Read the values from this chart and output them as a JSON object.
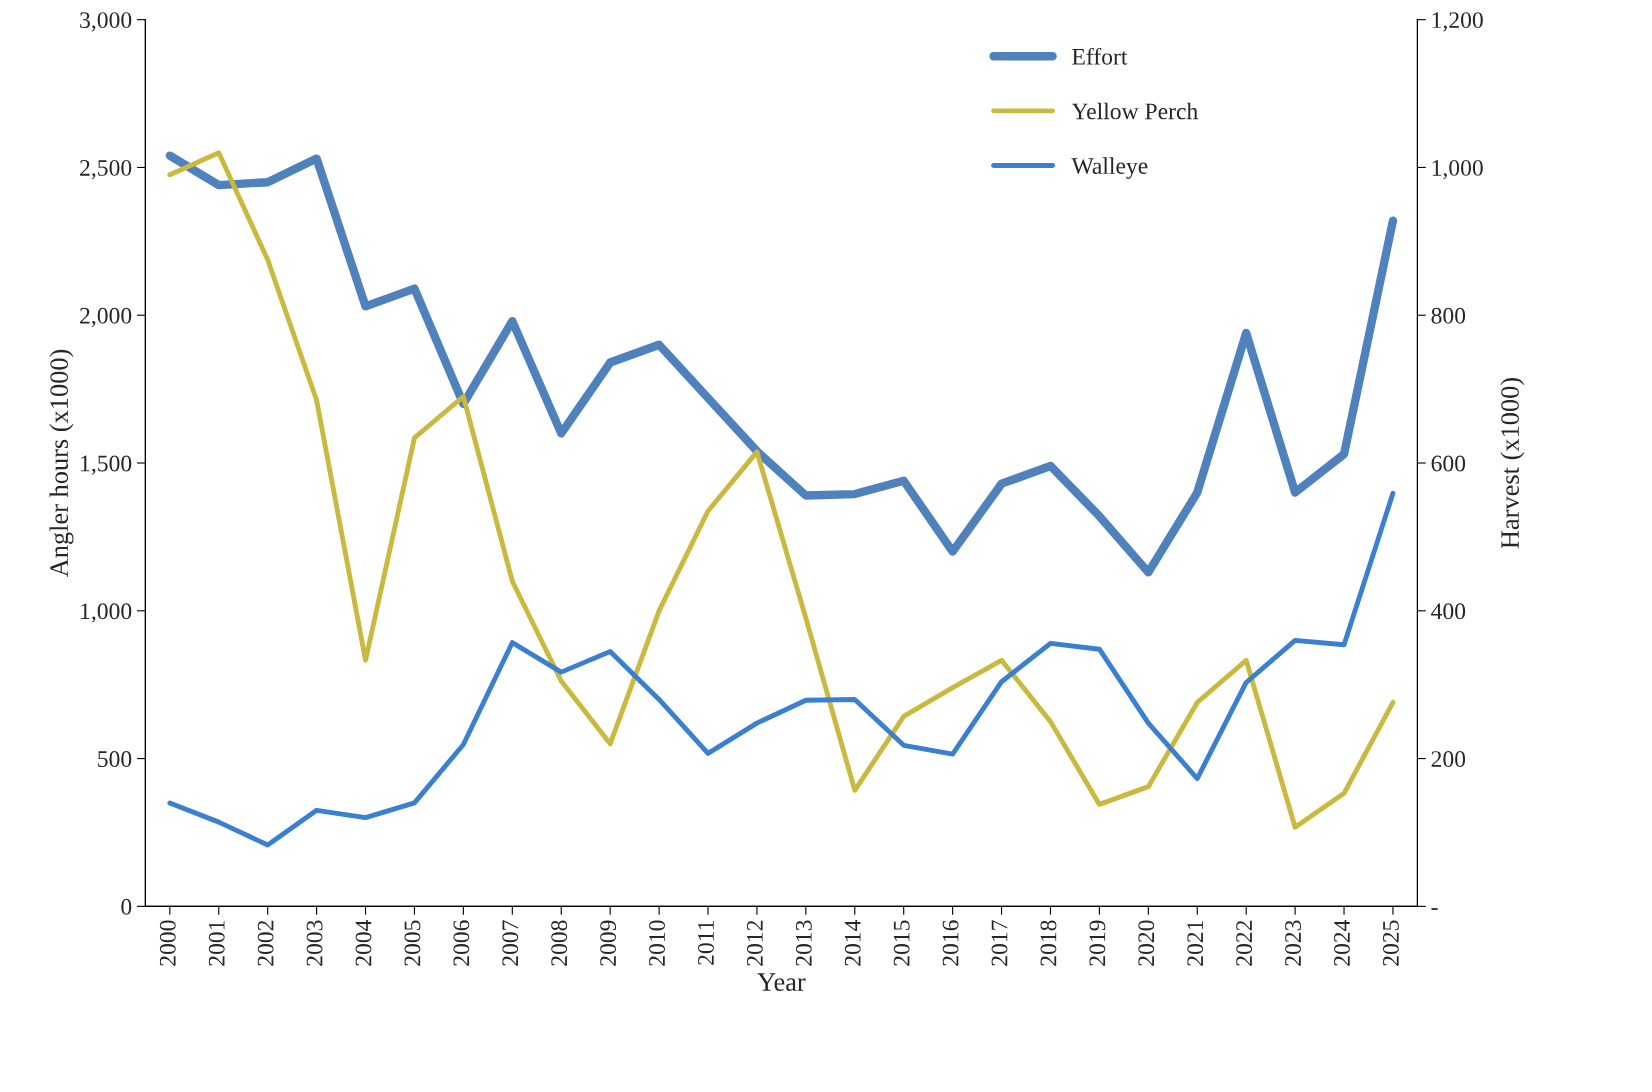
{
  "chart_data": {
    "type": "line",
    "xlabel": "Year",
    "ylabel": "Angler hours (x1000)",
    "y2label": "Harvest (x1000)",
    "categories": [
      "2000",
      "2001",
      "2002",
      "2003",
      "2004",
      "2005",
      "2006",
      "2007",
      "2008",
      "2009",
      "2010",
      "2011",
      "2012",
      "2013",
      "2014",
      "2015",
      "2016",
      "2017",
      "2018",
      "2019",
      "2020",
      "2021",
      "2022",
      "2023",
      "2024",
      "2025"
    ],
    "series": [
      {
        "name": "Effort",
        "color": "#4f81bd",
        "values": [
          2540,
          2440,
          2450,
          2530,
          2030,
          2090,
          1700,
          1980,
          1600,
          1840,
          1900,
          1720,
          1540,
          1390,
          1395,
          1440,
          1200,
          1430,
          1490,
          1320,
          1130,
          1400,
          1940,
          1400,
          1530,
          2320
        ]
      },
      {
        "name": "Yellow Perch",
        "color": "#c9b93e",
        "axis": "y2",
        "values": [
          990,
          1020,
          875,
          685,
          333,
          634,
          690,
          440,
          305,
          220,
          400,
          535,
          615,
          390,
          157,
          257,
          296,
          333,
          250,
          138,
          162,
          276,
          333,
          107,
          153,
          276
        ]
      },
      {
        "name": "Walleye",
        "color": "#3a7fd0",
        "axis": "y2",
        "values": [
          140,
          114,
          83,
          130,
          120,
          140,
          219,
          357,
          317,
          345,
          280,
          207,
          248,
          279,
          280,
          218,
          206,
          304,
          356,
          348,
          248,
          173,
          303,
          360,
          354,
          559
        ]
      }
    ],
    "ylim": [
      0,
      3000
    ],
    "yticks": [
      {
        "value": 0,
        "label": "0"
      },
      {
        "value": 500,
        "label": "500"
      },
      {
        "value": 1000,
        "label": "1,000"
      },
      {
        "value": 1500,
        "label": "1,500"
      },
      {
        "value": 2000,
        "label": "2,000"
      },
      {
        "value": 2500,
        "label": "2,500"
      },
      {
        "value": 3000,
        "label": "3,000"
      }
    ],
    "y2lim": [
      0,
      1200
    ],
    "y2ticks": [
      {
        "value": 0,
        "label": "-"
      },
      {
        "value": 200,
        "label": "200"
      },
      {
        "value": 400,
        "label": "400"
      },
      {
        "value": 600,
        "label": "600"
      },
      {
        "value": 800,
        "label": "800"
      },
      {
        "value": 1000,
        "label": "1,000"
      },
      {
        "value": 1200,
        "label": "1,200"
      }
    ],
    "grid": false,
    "legend": "top right",
    "marker": "none",
    "line_style": "solid"
  }
}
